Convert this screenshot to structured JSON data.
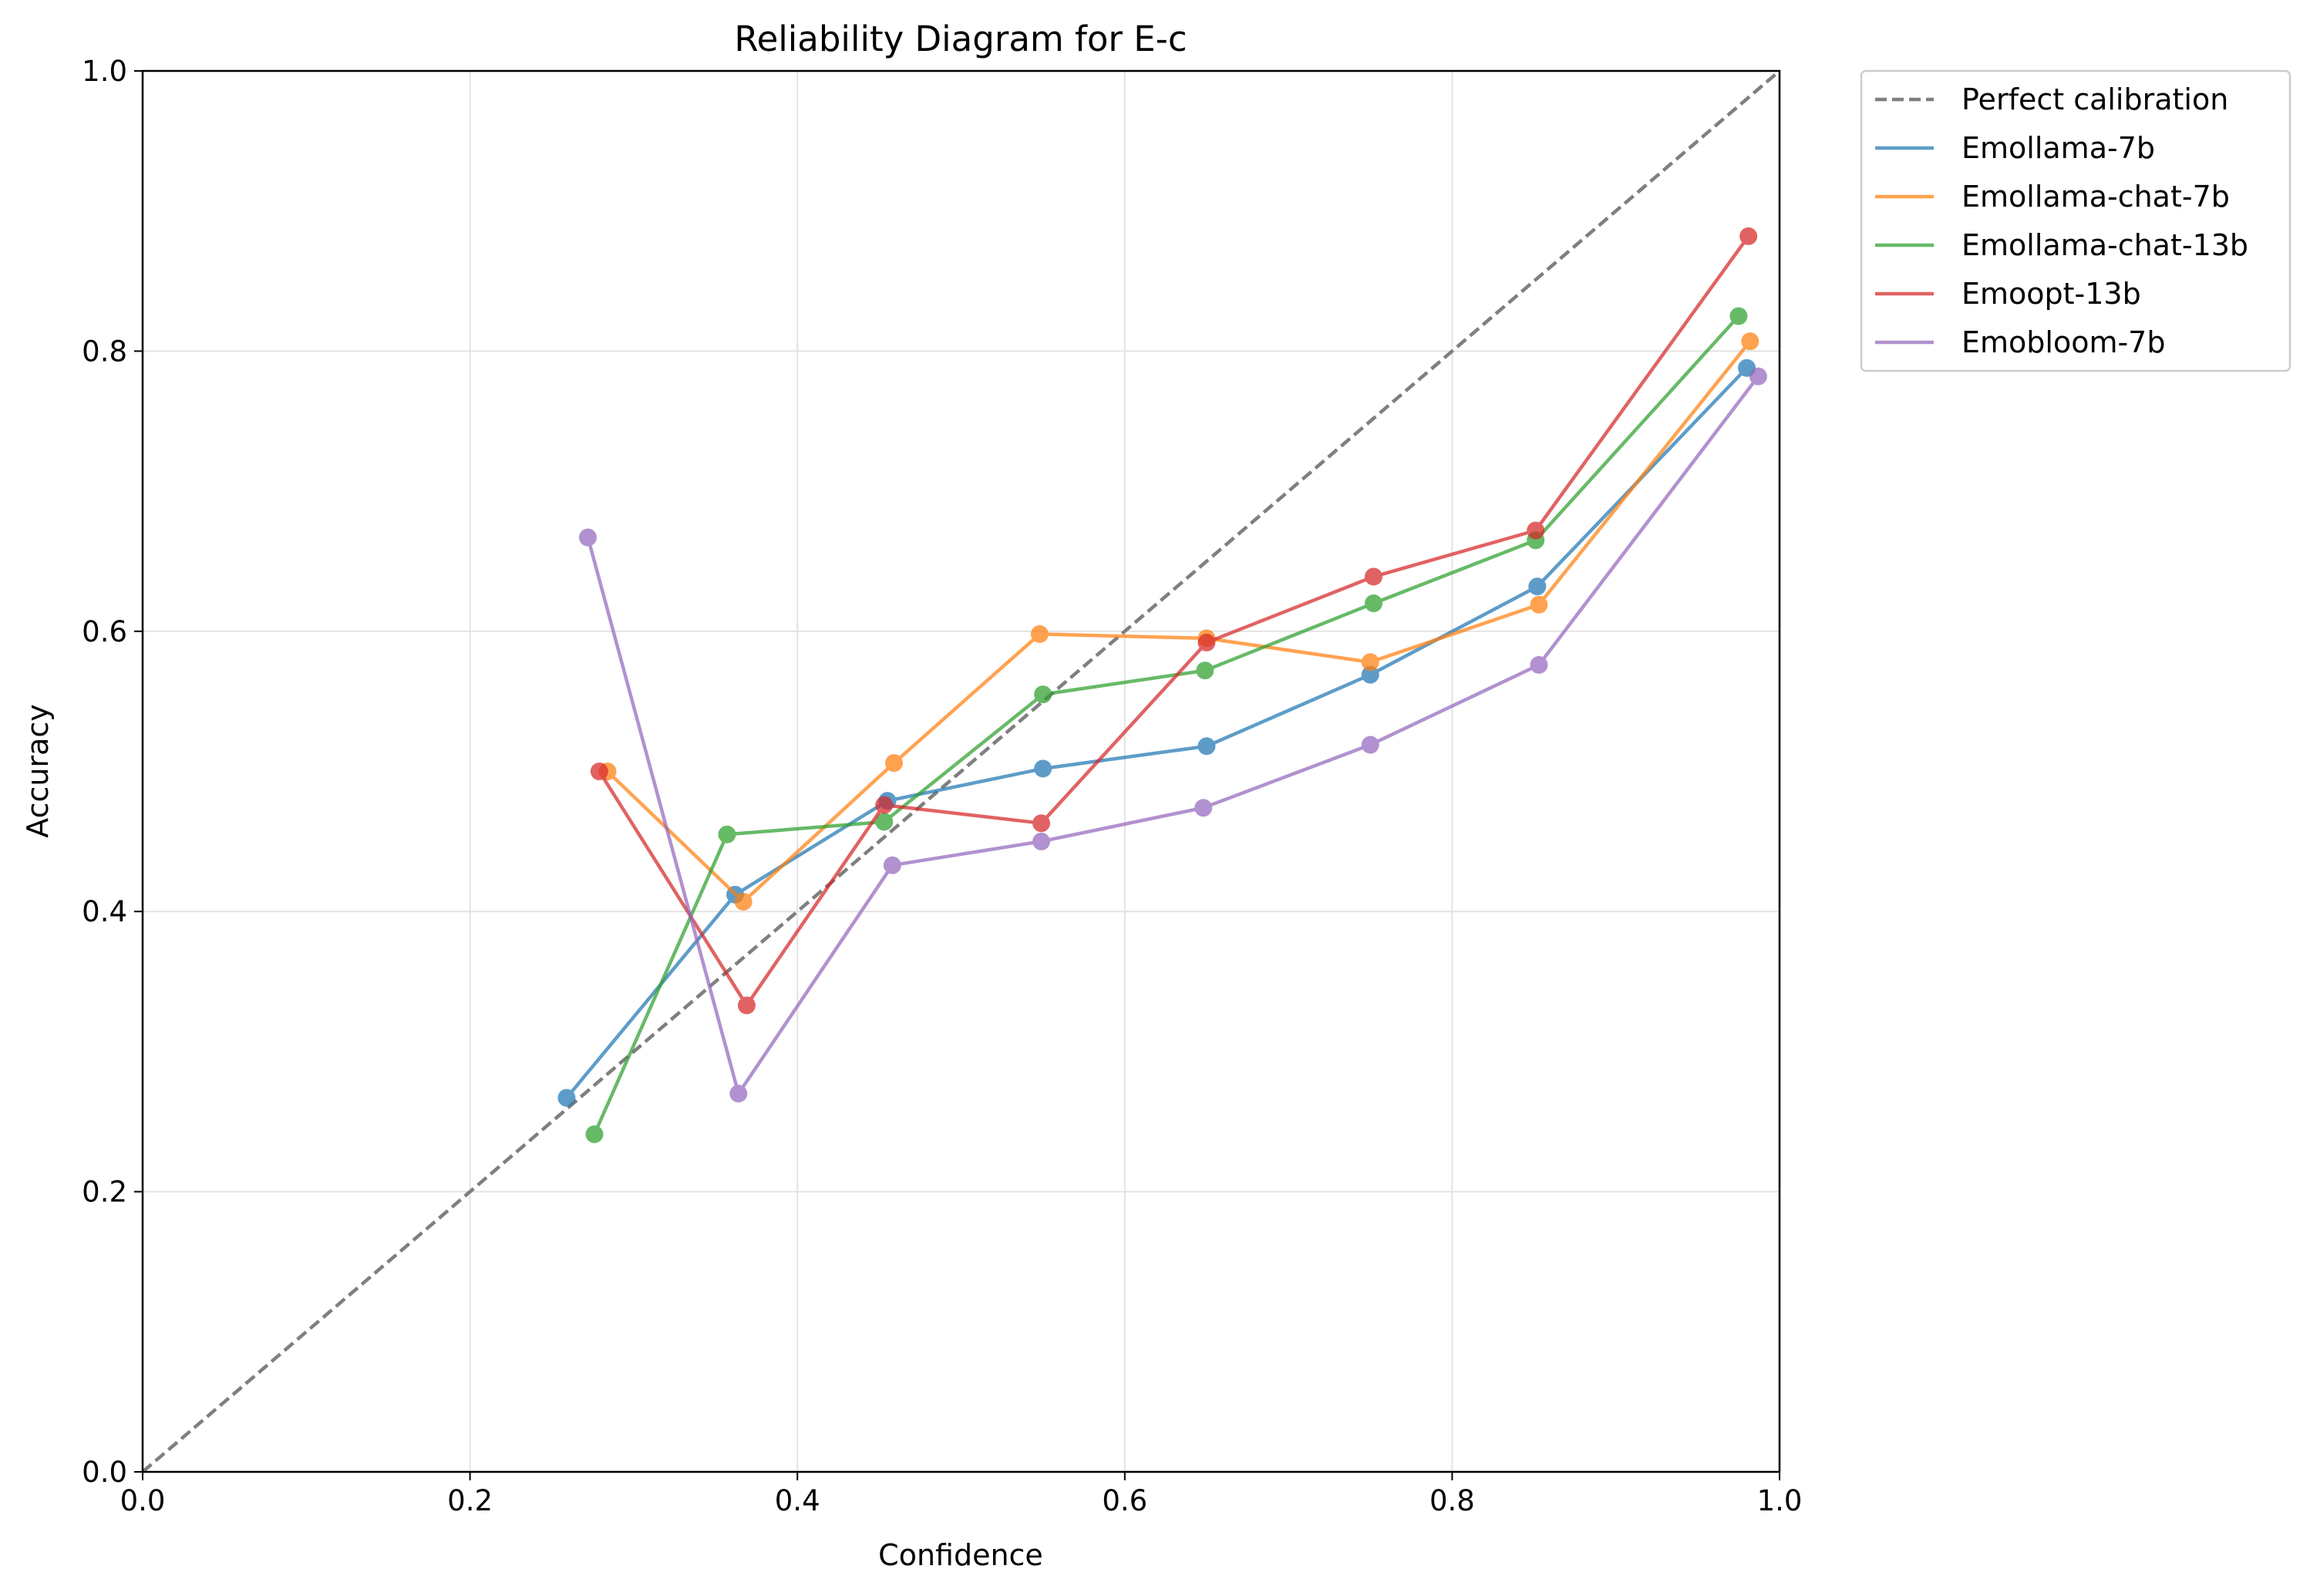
{
  "chart_data": {
    "type": "line",
    "title": "Reliability Diagram for E-c",
    "xlabel": "Confidence",
    "ylabel": "Accuracy",
    "xlim": [
      0.0,
      1.0
    ],
    "ylim": [
      0.0,
      1.0
    ],
    "xticks": [
      "0.0",
      "0.2",
      "0.4",
      "0.6",
      "0.8",
      "1.0"
    ],
    "yticks": [
      "0.0",
      "0.2",
      "0.4",
      "0.6",
      "0.8",
      "1.0"
    ],
    "grid": true,
    "legend_position": "outside top-right",
    "reference_line": {
      "name": "Perfect calibration",
      "x": [
        0,
        1
      ],
      "y": [
        0,
        1
      ],
      "color": "#7f7f7f",
      "style": "dashed"
    },
    "series": [
      {
        "name": "Emollama-7b",
        "color": "#1f77b4",
        "x": [
          0.259,
          0.362,
          0.455,
          0.55,
          0.65,
          0.75,
          0.852,
          0.98
        ],
        "y": [
          0.267,
          0.412,
          0.479,
          0.502,
          0.518,
          0.569,
          0.632,
          0.788
        ]
      },
      {
        "name": "Emollama-chat-7b",
        "color": "#ff7f0e",
        "x": [
          0.284,
          0.367,
          0.459,
          0.548,
          0.65,
          0.75,
          0.853,
          0.982
        ],
        "y": [
          0.5,
          0.407,
          0.506,
          0.598,
          0.595,
          0.578,
          0.619,
          0.807
        ]
      },
      {
        "name": "Emollama-chat-13b",
        "color": "#2ca02c",
        "x": [
          0.276,
          0.357,
          0.453,
          0.55,
          0.649,
          0.752,
          0.851,
          0.975
        ],
        "y": [
          0.241,
          0.455,
          0.464,
          0.555,
          0.572,
          0.62,
          0.665,
          0.825
        ]
      },
      {
        "name": "Emoopt-13b",
        "color": "#d62728",
        "x": [
          0.279,
          0.369,
          0.453,
          0.549,
          0.65,
          0.752,
          0.851,
          0.981
        ],
        "y": [
          0.5,
          0.333,
          0.476,
          0.463,
          0.592,
          0.639,
          0.672,
          0.882
        ]
      },
      {
        "name": "Emobloom-7b",
        "color": "#9467bd",
        "x": [
          0.272,
          0.364,
          0.458,
          0.549,
          0.648,
          0.75,
          0.853,
          0.987
        ],
        "y": [
          0.667,
          0.27,
          0.433,
          0.45,
          0.474,
          0.519,
          0.576,
          0.782
        ]
      }
    ]
  }
}
